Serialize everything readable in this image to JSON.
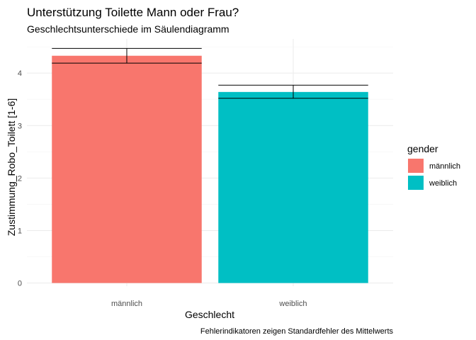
{
  "chart_data": {
    "type": "bar",
    "title": "Unterstützung Toilette Mann oder Frau?",
    "subtitle": "Geschlechtsunterschiede im Säulendiagramm",
    "caption": "Fehlerindikatoren zeigen Standardfehler des Mittelwerts",
    "xlabel": "Geschlecht",
    "ylabel": "Zustimmung_Robo_Toilett [1-6]",
    "categories": [
      "männlich",
      "weiblich"
    ],
    "values": [
      4.33,
      3.64
    ],
    "error_low": [
      4.19,
      3.52
    ],
    "error_high": [
      4.47,
      3.77
    ],
    "ylim": [
      -0.06,
      4.65
    ],
    "yticks": [
      0,
      1,
      2,
      3,
      4
    ],
    "grid": true,
    "legend": {
      "title": "gender",
      "placement": "right",
      "entries": [
        "männlich",
        "weiblich"
      ]
    },
    "colors": [
      "#F8766D",
      "#00BFC4"
    ]
  }
}
